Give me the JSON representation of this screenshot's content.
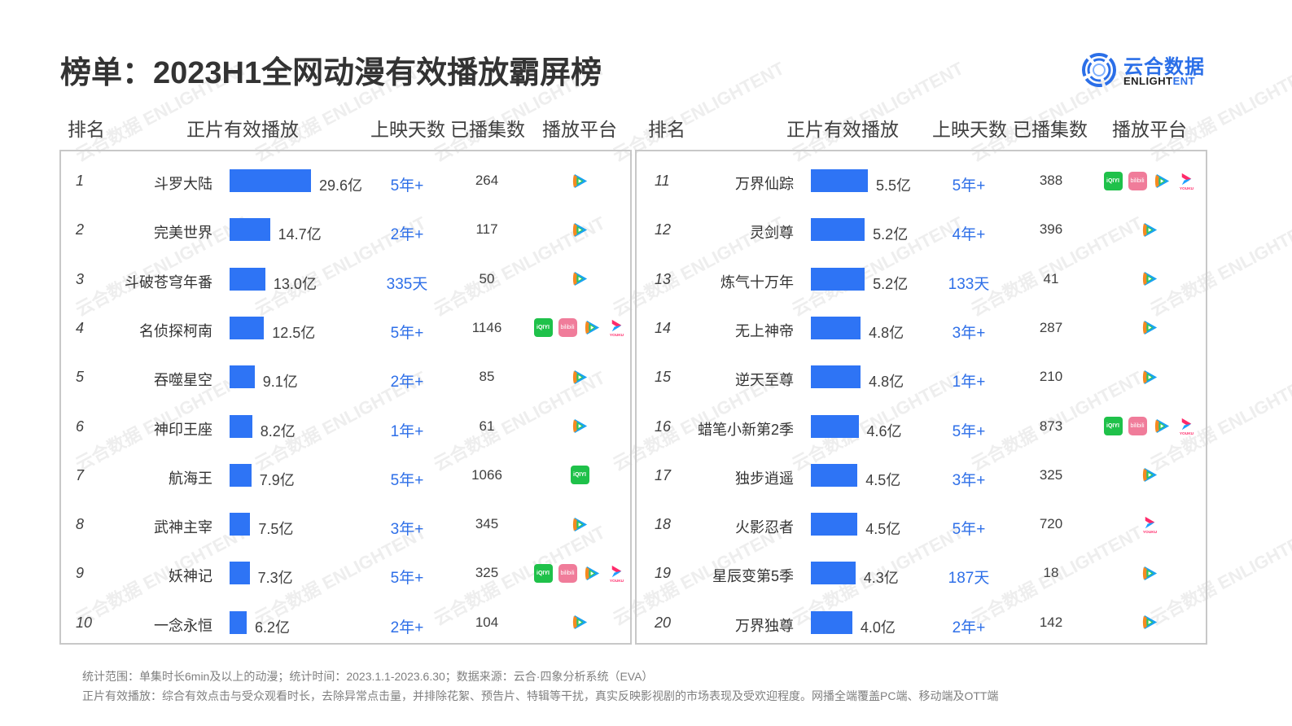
{
  "title": "榜单：2023H1全网动漫有效播放霸屏榜",
  "logo": {
    "cn": "云合数据",
    "en_left": "ENLIGHT",
    "en_right": "ENT"
  },
  "headers": {
    "rank": "排名",
    "views": "正片有效播放",
    "days": "上映天数",
    "episodes": "已播集数",
    "platform": "播放平台"
  },
  "colors": {
    "bar": "#2e74f5",
    "days_text": "#2e6fe8",
    "iqiyi": "#1fc14a",
    "bilibili": "#f07c9a",
    "border": "#c8c8c8"
  },
  "icons": {
    "iqiyi": "iqiyi-icon",
    "bilibili": "bilibili-icon",
    "tencent": "tencent-video-icon",
    "youku": "youku-icon"
  },
  "icon_labels": {
    "iqiyi": "iQIYI",
    "bilibili": "bilibili",
    "youku": "YOUKU"
  },
  "rows": [
    {
      "rank": "1",
      "name": "斗罗大陆",
      "value": "29.6亿",
      "days": "5年+",
      "episodes": "264",
      "platforms": [
        "tencent"
      ]
    },
    {
      "rank": "2",
      "name": "完美世界",
      "value": "14.7亿",
      "days": "2年+",
      "episodes": "117",
      "platforms": [
        "tencent"
      ]
    },
    {
      "rank": "3",
      "name": "斗破苍穹年番",
      "value": "13.0亿",
      "days": "335天",
      "episodes": "50",
      "platforms": [
        "tencent"
      ]
    },
    {
      "rank": "4",
      "name": "名侦探柯南",
      "value": "12.5亿",
      "days": "5年+",
      "episodes": "1146",
      "platforms": [
        "iqiyi",
        "bilibili",
        "tencent",
        "youku"
      ]
    },
    {
      "rank": "5",
      "name": "吞噬星空",
      "value": "9.1亿",
      "days": "2年+",
      "episodes": "85",
      "platforms": [
        "tencent"
      ]
    },
    {
      "rank": "6",
      "name": "神印王座",
      "value": "8.2亿",
      "days": "1年+",
      "episodes": "61",
      "platforms": [
        "tencent"
      ]
    },
    {
      "rank": "7",
      "name": "航海王",
      "value": "7.9亿",
      "days": "5年+",
      "episodes": "1066",
      "platforms": [
        "iqiyi"
      ]
    },
    {
      "rank": "8",
      "name": "武神主宰",
      "value": "7.5亿",
      "days": "3年+",
      "episodes": "345",
      "platforms": [
        "tencent"
      ]
    },
    {
      "rank": "9",
      "name": "妖神记",
      "value": "7.3亿",
      "days": "5年+",
      "episodes": "325",
      "platforms": [
        "iqiyi",
        "bilibili",
        "tencent",
        "youku"
      ]
    },
    {
      "rank": "10",
      "name": "一念永恒",
      "value": "6.2亿",
      "days": "2年+",
      "episodes": "104",
      "platforms": [
        "tencent"
      ]
    },
    {
      "rank": "11",
      "name": "万界仙踪",
      "value": "5.5亿",
      "days": "5年+",
      "episodes": "388",
      "platforms": [
        "iqiyi",
        "bilibili",
        "tencent",
        "youku"
      ]
    },
    {
      "rank": "12",
      "name": "灵剑尊",
      "value": "5.2亿",
      "days": "4年+",
      "episodes": "396",
      "platforms": [
        "tencent"
      ]
    },
    {
      "rank": "13",
      "name": "炼气十万年",
      "value": "5.2亿",
      "days": "133天",
      "episodes": "41",
      "platforms": [
        "tencent"
      ]
    },
    {
      "rank": "14",
      "name": "无上神帝",
      "value": "4.8亿",
      "days": "3年+",
      "episodes": "287",
      "platforms": [
        "tencent"
      ]
    },
    {
      "rank": "15",
      "name": "逆天至尊",
      "value": "4.8亿",
      "days": "1年+",
      "episodes": "210",
      "platforms": [
        "tencent"
      ]
    },
    {
      "rank": "16",
      "name": "蜡笔小新第2季",
      "value": "4.6亿",
      "days": "5年+",
      "episodes": "873",
      "platforms": [
        "iqiyi",
        "bilibili",
        "tencent",
        "youku"
      ]
    },
    {
      "rank": "17",
      "name": "独步逍遥",
      "value": "4.5亿",
      "days": "3年+",
      "episodes": "325",
      "platforms": [
        "tencent"
      ]
    },
    {
      "rank": "18",
      "name": "火影忍者",
      "value": "4.5亿",
      "days": "5年+",
      "episodes": "720",
      "platforms": [
        "youku"
      ]
    },
    {
      "rank": "19",
      "name": "星辰变第5季",
      "value": "4.3亿",
      "days": "187天",
      "episodes": "18",
      "platforms": [
        "tencent"
      ]
    },
    {
      "rank": "20",
      "name": "万界独尊",
      "value": "4.0亿",
      "days": "2年+",
      "episodes": "142",
      "platforms": [
        "tencent"
      ]
    }
  ],
  "footnotes": [
    "统计范围：单集时长6min及以上的动漫；统计时间：2023.1.1-2023.6.30；数据来源：云合·四象分析系统（EVA）",
    "正片有效播放：综合有效点击与受众观看时长，去除异常点击量，并排除花絮、预告片、特辑等干扰，真实反映影视剧的市场表现及受欢迎程度。网播全端覆盖PC端、移动端及OTT端"
  ],
  "watermark": "云合数据 ENLIGHTENT",
  "chart_data": {
    "type": "bar",
    "title": "榜单：2023H1全网动漫有效播放霸屏榜",
    "xlabel": "正片有效播放（亿）",
    "ylabel": "排名",
    "orientation": "horizontal",
    "categories": [
      "斗罗大陆",
      "完美世界",
      "斗破苍穹年番",
      "名侦探柯南",
      "吞噬星空",
      "神印王座",
      "航海王",
      "武神主宰",
      "妖神记",
      "一念永恒",
      "万界仙踪",
      "灵剑尊",
      "炼气十万年",
      "无上神帝",
      "逆天至尊",
      "蜡笔小新第2季",
      "独步逍遥",
      "火影忍者",
      "星辰变第5季",
      "万界独尊"
    ],
    "values": [
      29.6,
      14.7,
      13.0,
      12.5,
      9.1,
      8.2,
      7.9,
      7.5,
      7.3,
      6.2,
      5.5,
      5.2,
      5.2,
      4.8,
      4.8,
      4.6,
      4.5,
      4.5,
      4.3,
      4.0
    ],
    "unit": "亿",
    "extra_columns": {
      "上映天数": [
        "5年+",
        "2年+",
        "335天",
        "5年+",
        "2年+",
        "1年+",
        "5年+",
        "3年+",
        "5年+",
        "2年+",
        "5年+",
        "4年+",
        "133天",
        "3年+",
        "1年+",
        "5年+",
        "3年+",
        "5年+",
        "187天",
        "2年+"
      ],
      "已播集数": [
        264,
        117,
        50,
        1146,
        85,
        61,
        1066,
        345,
        325,
        104,
        388,
        396,
        41,
        287,
        210,
        873,
        325,
        720,
        18,
        142
      ]
    },
    "grid": false,
    "legend": "none"
  }
}
